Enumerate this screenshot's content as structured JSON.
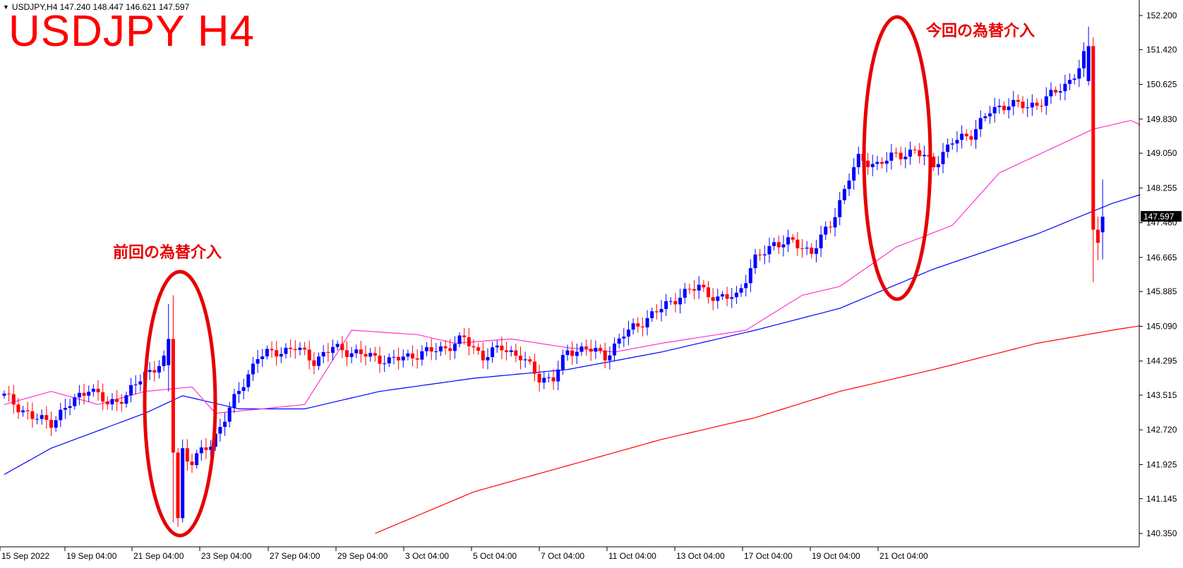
{
  "header": {
    "symbol_line": "USDJPY,H4  147.240 148.447 146.621 147.597",
    "dropdown_glyph": "▼"
  },
  "title": "USDJPY H4",
  "annotations": {
    "current": "今回の為替介入",
    "previous": "前回の為替介入"
  },
  "colors": {
    "bull": "#0000ff",
    "bear": "#ff0000",
    "ma_fast": "#ff33cc",
    "ma_mid": "#0000ff",
    "ma_slow": "#ff0000",
    "ellipse": "#e60000",
    "price_box": "#000000"
  },
  "chart_data": {
    "type": "candlestick",
    "symbol": "USDJPY",
    "timeframe": "H4",
    "ohlc": {
      "open": 147.24,
      "high": 148.447,
      "low": 146.621,
      "close": 147.597
    },
    "current_price_label": "147.597",
    "ylim": [
      140.35,
      152.2
    ],
    "y_ticks": [
      "152.200",
      "151.420",
      "150.625",
      "149.830",
      "149.050",
      "148.255",
      "147.460",
      "146.665",
      "145.885",
      "145.090",
      "144.295",
      "143.515",
      "142.720",
      "141.925",
      "141.145",
      "140.350"
    ],
    "x_ticks": [
      "15 Sep 2022",
      "19 Sep 04:00",
      "21 Sep 04:00",
      "23 Sep 04:00",
      "27 Sep 04:00",
      "29 Sep 04:00",
      "3 Oct 04:00",
      "5 Oct 04:00",
      "7 Oct 04:00",
      "11 Oct 04:00",
      "13 Oct 04:00",
      "17 Oct 04:00",
      "19 Oct 04:00",
      "21 Oct 04:00"
    ],
    "ma_fast_key": [
      [
        0,
        143.3
      ],
      [
        10,
        143.6
      ],
      [
        20,
        143.3
      ],
      [
        30,
        143.6
      ],
      [
        40,
        143.7
      ],
      [
        45,
        143.1
      ],
      [
        55,
        143.2
      ],
      [
        64,
        143.3
      ],
      [
        74,
        145.0
      ],
      [
        88,
        144.9
      ],
      [
        96,
        144.7
      ],
      [
        108,
        144.8
      ],
      [
        120,
        144.6
      ],
      [
        130,
        144.5
      ],
      [
        140,
        144.7
      ],
      [
        158,
        145.0
      ],
      [
        170,
        145.8
      ],
      [
        178,
        146.0
      ],
      [
        190,
        146.9
      ],
      [
        202,
        147.4
      ],
      [
        212,
        148.6
      ],
      [
        222,
        149.1
      ],
      [
        232,
        149.6
      ],
      [
        240,
        149.8
      ],
      [
        242,
        149.7
      ]
    ],
    "ma_mid_key": [
      [
        0,
        141.7
      ],
      [
        10,
        142.3
      ],
      [
        20,
        142.7
      ],
      [
        30,
        143.1
      ],
      [
        38,
        143.5
      ],
      [
        50,
        143.2
      ],
      [
        64,
        143.2
      ],
      [
        80,
        143.6
      ],
      [
        100,
        143.9
      ],
      [
        120,
        144.1
      ],
      [
        140,
        144.5
      ],
      [
        160,
        145.0
      ],
      [
        178,
        145.5
      ],
      [
        198,
        146.4
      ],
      [
        220,
        147.2
      ],
      [
        236,
        147.9
      ],
      [
        242,
        148.1
      ]
    ],
    "ma_slow_key": [
      [
        79,
        140.35
      ],
      [
        100,
        141.3
      ],
      [
        120,
        141.9
      ],
      [
        140,
        142.5
      ],
      [
        160,
        143.0
      ],
      [
        178,
        143.6
      ],
      [
        198,
        144.1
      ],
      [
        220,
        144.7
      ],
      [
        236,
        145.0
      ],
      [
        242,
        145.1
      ]
    ],
    "intervention_prev": {
      "close": 142.15,
      "high_spike": 145.8,
      "low": 140.6
    },
    "intervention_now": {
      "high": 151.95,
      "low": 146.1
    }
  }
}
